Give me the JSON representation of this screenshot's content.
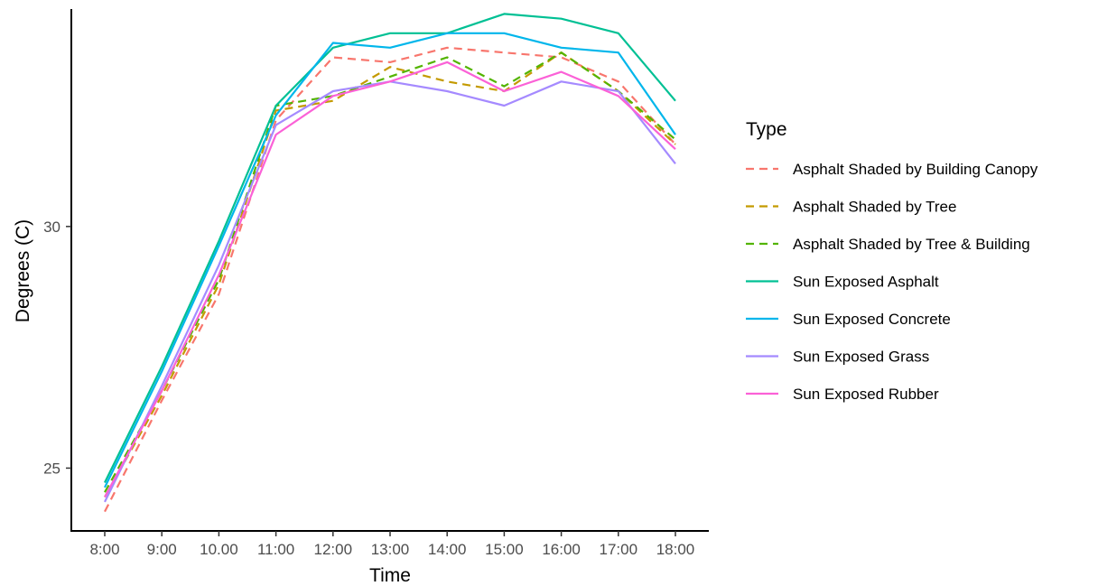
{
  "chart_data": {
    "type": "line",
    "title": "",
    "xlabel": "Time",
    "ylabel": "Degrees (C)",
    "categories": [
      "8:00",
      "9:00",
      "10.00",
      "11:00",
      "12:00",
      "13:00",
      "14:00",
      "15:00",
      "16:00",
      "17:00",
      "18:00"
    ],
    "ylim": [
      23.7,
      34.5
    ],
    "yticks": [
      "25",
      "30"
    ],
    "grid": false,
    "legend": {
      "title": "Type",
      "position": "right"
    },
    "series": [
      {
        "name": "Asphalt Shaded by Building Canopy",
        "color": "#F8766D",
        "dash": "dashed",
        "values": [
          24.1,
          26.4,
          28.6,
          32.2,
          33.5,
          33.4,
          33.7,
          33.6,
          33.5,
          33.0,
          31.7
        ]
      },
      {
        "name": "Asphalt Shaded by Tree",
        "color": "#C49A00",
        "dash": "dashed",
        "values": [
          24.4,
          26.5,
          28.8,
          32.4,
          32.6,
          33.3,
          33.0,
          32.8,
          33.6,
          32.8,
          31.7
        ]
      },
      {
        "name": "Asphalt Shaded by Tree & Building",
        "color": "#53B400",
        "dash": "dashed",
        "values": [
          24.5,
          26.6,
          28.9,
          32.5,
          32.7,
          33.1,
          33.5,
          32.9,
          33.6,
          32.8,
          31.8
        ]
      },
      {
        "name": "Sun Exposed Asphalt",
        "color": "#00C094",
        "dash": "solid",
        "values": [
          24.7,
          27.1,
          29.7,
          32.5,
          33.7,
          34.0,
          34.0,
          34.4,
          34.3,
          34.0,
          32.6
        ]
      },
      {
        "name": "Sun Exposed Concrete",
        "color": "#00B6EB",
        "dash": "solid",
        "values": [
          24.6,
          27.0,
          29.6,
          32.3,
          33.8,
          33.7,
          34.0,
          34.0,
          33.7,
          33.6,
          31.9
        ]
      },
      {
        "name": "Sun Exposed Grass",
        "color": "#A58AFF",
        "dash": "solid",
        "values": [
          24.3,
          26.7,
          29.2,
          32.1,
          32.8,
          33.0,
          32.8,
          32.5,
          33.0,
          32.8,
          31.3
        ]
      },
      {
        "name": "Sun Exposed Rubber",
        "color": "#FB61D7",
        "dash": "solid",
        "values": [
          24.4,
          26.6,
          29.0,
          31.9,
          32.7,
          33.0,
          33.4,
          32.8,
          33.2,
          32.7,
          31.6
        ]
      }
    ]
  }
}
